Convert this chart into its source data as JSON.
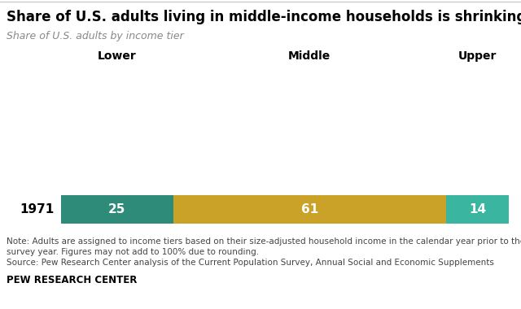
{
  "title": "Share of U.S. adults living in middle-income households is shrinking",
  "subtitle": "Share of U.S. adults by income tier",
  "year": "1971",
  "lower_value": 25,
  "middle_value": 61,
  "upper_value": 14,
  "lower_color": "#2e8b7a",
  "middle_color": "#c9a227",
  "upper_color": "#3ab5a0",
  "lower_label": "Lower",
  "middle_label": "Middle",
  "upper_label": "Upper",
  "note_line1": "Note: Adults are assigned to income tiers based on their size-adjusted household income in the calendar year prior to the",
  "note_line2": "survey year. Figures may not add to 100% due to rounding.",
  "source_line": "Source: Pew Research Center analysis of the Current Population Survey, Annual Social and Economic Supplements",
  "branding": "PEW RESEARCH CENTER",
  "bg_color": "#ffffff",
  "bar_text_color": "#ffffff",
  "title_fontsize": 12,
  "subtitle_fontsize": 9,
  "header_fontsize": 10,
  "bar_label_fontsize": 11,
  "note_fontsize": 7.5,
  "year_fontsize": 11
}
